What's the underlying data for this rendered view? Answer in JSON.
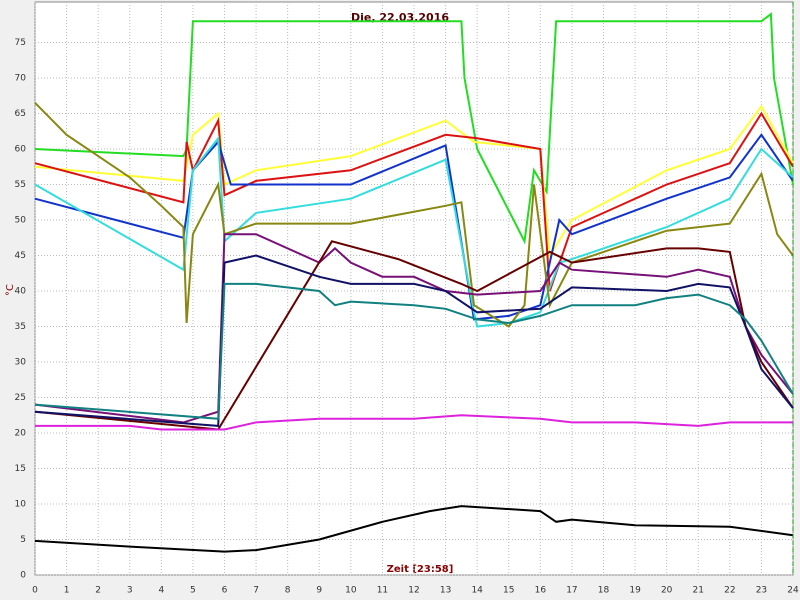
{
  "chart_data": {
    "type": "line",
    "title": "Die, 22.03.2016",
    "xlabel": "Zeit [23:58]",
    "ylabel": "°C",
    "xlim": [
      0,
      24
    ],
    "ylim": [
      0,
      80
    ],
    "xticks": [
      0,
      1,
      2,
      3,
      4,
      5,
      6,
      7,
      8,
      9,
      10,
      11,
      12,
      13,
      14,
      15,
      16,
      17,
      18,
      19,
      20,
      21,
      22,
      23,
      24
    ],
    "yticks": [
      0,
      5,
      10,
      15,
      20,
      25,
      30,
      35,
      40,
      45,
      50,
      55,
      60,
      65,
      70,
      75
    ],
    "grid": true,
    "series": [
      {
        "color": "#22dd22",
        "x": [
          0,
          4.7,
          4.8,
          5,
          13.5,
          13.6,
          14,
          15.5,
          15.8,
          16.2,
          16.5,
          23,
          23.3,
          23.4,
          24
        ],
        "values": [
          60,
          59,
          60,
          78,
          78,
          70,
          60,
          47,
          57,
          54,
          78,
          78,
          79,
          70,
          55
        ]
      },
      {
        "color": "#ffff33",
        "x": [
          0,
          4.7,
          5,
          5.8,
          6,
          7,
          10,
          13,
          13.9,
          16,
          16.3,
          17,
          20,
          22,
          23,
          24
        ],
        "values": [
          57.5,
          55.5,
          62,
          65,
          55,
          57,
          59,
          64,
          61,
          60,
          45,
          50,
          57,
          60,
          66,
          58
        ]
      },
      {
        "color": "#dd1111",
        "x": [
          0,
          4.7,
          4.8,
          5,
          5.8,
          6,
          7,
          10,
          13,
          14,
          16,
          16.3,
          17,
          20,
          22,
          23,
          24
        ],
        "values": [
          58,
          52.5,
          61,
          57,
          64,
          53.5,
          55.5,
          57,
          62,
          61.5,
          60,
          40,
          49,
          55,
          58,
          65,
          57.5
        ]
      },
      {
        "color": "#1133cc",
        "x": [
          0,
          4.7,
          5,
          5.8,
          6.2,
          7,
          10,
          13,
          13.9,
          15,
          16,
          16.6,
          17,
          20,
          22,
          23,
          24
        ],
        "values": [
          53,
          47.5,
          57,
          61,
          55,
          55,
          55,
          60.5,
          36,
          36.5,
          38,
          50,
          48,
          53,
          56,
          62,
          55.5
        ]
      },
      {
        "color": "#33dddd",
        "x": [
          0,
          4.7,
          5,
          5.8,
          6,
          7,
          10,
          13,
          13.9,
          14,
          15,
          16,
          16.6,
          17,
          20,
          22,
          23,
          24
        ],
        "values": [
          55,
          43,
          57,
          61.5,
          47,
          51,
          53,
          58.5,
          37,
          35,
          35.5,
          37,
          44,
          44.5,
          49,
          53,
          60,
          56
        ]
      },
      {
        "color": "#888811",
        "x": [
          0,
          1,
          2,
          3,
          4,
          4.7,
          4.8,
          5,
          5.8,
          6,
          7,
          10,
          13,
          13.5,
          13.9,
          15,
          15.5,
          15.8,
          16.3,
          17,
          19,
          20,
          22,
          23,
          23.5,
          24
        ],
        "values": [
          66.5,
          62,
          59,
          56,
          52,
          49,
          35.5,
          48,
          55,
          48,
          49.5,
          49.5,
          52,
          52.5,
          38,
          35,
          38,
          55,
          38,
          44,
          47,
          48.5,
          49.5,
          56.5,
          48,
          45
        ]
      },
      {
        "color": "#771177",
        "x": [
          0,
          4.7,
          5.8,
          6,
          7,
          9,
          9.5,
          10,
          11,
          12,
          13,
          14,
          16,
          16.6,
          17,
          20,
          21,
          22,
          22.5,
          23,
          24
        ],
        "values": [
          24,
          21.5,
          23,
          48,
          48,
          44,
          46,
          44,
          42,
          42,
          40,
          39.5,
          40,
          44,
          43,
          42,
          43,
          42,
          35,
          31,
          25.5
        ]
      },
      {
        "color": "#660000",
        "x": [
          0,
          5.8,
          9.4,
          11.5,
          13.5,
          14,
          16.3,
          17,
          20,
          21,
          22,
          22.5,
          23,
          24
        ],
        "values": [
          23,
          20.5,
          47,
          44.5,
          41,
          40,
          45.5,
          44,
          46,
          46,
          45.5,
          35,
          30,
          23.5
        ]
      },
      {
        "color": "#111166",
        "x": [
          0,
          5.8,
          6,
          7,
          9,
          10,
          12,
          13,
          14,
          16,
          17,
          20,
          21,
          22,
          22.5,
          23,
          24
        ],
        "values": [
          23,
          21,
          44,
          45,
          42,
          41,
          41,
          40,
          37,
          37.5,
          40.5,
          40,
          41,
          40.5,
          35,
          29,
          23.5
        ]
      },
      {
        "color": "#118080",
        "x": [
          0,
          5.8,
          6,
          7,
          9,
          9.5,
          10,
          12,
          13,
          14,
          15,
          16,
          17,
          19,
          20,
          21,
          22,
          22.5,
          23,
          24
        ],
        "values": [
          24,
          22,
          41,
          41,
          40,
          38,
          38.5,
          38,
          37.5,
          36,
          35.5,
          36.5,
          38,
          38,
          39,
          39.5,
          38,
          36,
          33,
          25.5
        ]
      },
      {
        "color": "#dd22dd",
        "x": [
          0,
          3,
          4,
          6,
          7,
          9,
          12,
          13.5,
          16,
          17,
          19,
          21,
          22,
          24
        ],
        "values": [
          21,
          21,
          20.5,
          20.5,
          21.5,
          22,
          22,
          22.5,
          22,
          21.5,
          21.5,
          21,
          21.5,
          21.5
        ]
      },
      {
        "color": "#000000",
        "x": [
          0,
          3,
          6,
          7,
          9,
          11,
          12.5,
          13.5,
          16,
          16.5,
          17,
          19,
          22,
          24
        ],
        "values": [
          4.8,
          4,
          3.3,
          3.5,
          5,
          7.5,
          9,
          9.7,
          9,
          7.5,
          7.8,
          7,
          6.8,
          5.6
        ]
      }
    ]
  }
}
